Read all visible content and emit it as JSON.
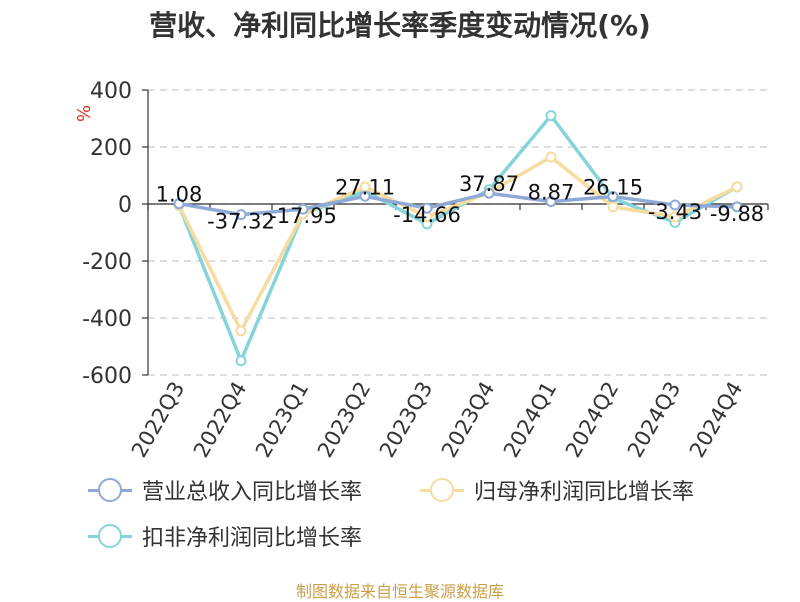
{
  "title": "营收、净利同比增长率季度变动情况(%)",
  "unit_label": "%",
  "source": "制图数据来自恒生聚源数据库",
  "colors": {
    "revenue": "#8fa9d6",
    "net_profit": "#f7dca0",
    "deducted_profit": "#86d3d9",
    "grid": "#cccccc",
    "axis": "#333333"
  },
  "chart_data": {
    "type": "line",
    "title": "营收、净利同比增长率季度变动情况(%)",
    "xlabel": "",
    "ylabel": "%",
    "ylim": [
      -600,
      400
    ],
    "yticks": [
      400,
      200,
      0,
      -200,
      -400,
      -600
    ],
    "grid": true,
    "legend_position": "bottom",
    "categories": [
      "2022Q3",
      "2022Q4",
      "2023Q1",
      "2023Q2",
      "2023Q3",
      "2023Q4",
      "2024Q1",
      "2024Q2",
      "2024Q3",
      "2024Q4"
    ],
    "series": [
      {
        "name": "营业总收入同比增长率",
        "values": [
          1.08,
          -37.32,
          -17.95,
          27.11,
          -14.66,
          37.87,
          8.87,
          26.15,
          -3.43,
          -9.88
        ],
        "labels": [
          "1.08",
          "-37.32",
          "-17.95",
          "27.11",
          "-14.66",
          "37.87",
          "8.87",
          "26.15",
          "-3.43",
          "-9.88"
        ]
      },
      {
        "name": "归母净利润同比增长率",
        "values": [
          -5,
          -445,
          -35,
          60,
          -45,
          40,
          165,
          -10,
          -45,
          60
        ]
      },
      {
        "name": "扣非净利润同比增长率",
        "values": [
          -5,
          -550,
          -35,
          45,
          -70,
          50,
          310,
          20,
          -65,
          60
        ]
      }
    ]
  }
}
